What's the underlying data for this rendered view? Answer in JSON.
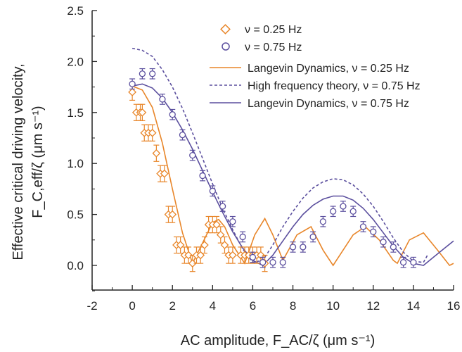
{
  "chart_data": {
    "type": "scatter",
    "xlabel": "AC amplitude, F_AC/ζ (μm s⁻¹)",
    "ylabel_line1": "Effective critical driving velocity,",
    "ylabel_line2": "F_C,eff/ζ (μm s⁻¹)",
    "xlim": [
      -2,
      16
    ],
    "ylim": [
      -0.25,
      2.5
    ],
    "x_ticks": [
      -2,
      0,
      2,
      4,
      6,
      8,
      10,
      12,
      14,
      16
    ],
    "y_ticks": [
      0.0,
      0.5,
      1.0,
      1.5,
      2.0,
      2.5
    ],
    "x_tick_labels": [
      "-2",
      "0",
      "2",
      "4",
      "6",
      "8",
      "10",
      "12",
      "14",
      "16"
    ],
    "y_tick_labels": [
      "0.0",
      "0.5",
      "1.0",
      "1.5",
      "2.0",
      "2.5"
    ],
    "legend_position": "top-right",
    "series": [
      {
        "name": "ν = 0.25 Hz",
        "kind": "scatter",
        "marker": "diamond",
        "color": "#E8862A",
        "error": 0.08,
        "points": [
          [
            0.0,
            1.7
          ],
          [
            0.2,
            1.5
          ],
          [
            0.4,
            1.5
          ],
          [
            0.5,
            1.5
          ],
          [
            0.6,
            1.3
          ],
          [
            0.8,
            1.3
          ],
          [
            1.0,
            1.3
          ],
          [
            1.2,
            1.1
          ],
          [
            1.4,
            0.9
          ],
          [
            1.6,
            0.9
          ],
          [
            1.8,
            0.5
          ],
          [
            2.0,
            0.5
          ],
          [
            2.2,
            0.2
          ],
          [
            2.4,
            0.2
          ],
          [
            2.6,
            0.1
          ],
          [
            2.8,
            0.1
          ],
          [
            3.0,
            0.02
          ],
          [
            3.2,
            0.1
          ],
          [
            3.4,
            0.1
          ],
          [
            3.6,
            0.2
          ],
          [
            3.8,
            0.4
          ],
          [
            4.0,
            0.4
          ],
          [
            4.2,
            0.4
          ],
          [
            4.4,
            0.3
          ],
          [
            4.6,
            0.2
          ],
          [
            4.8,
            0.1
          ],
          [
            5.0,
            0.1
          ],
          [
            5.4,
            0.1
          ],
          [
            5.6,
            0.1
          ],
          [
            5.8,
            0.1
          ],
          [
            6.0,
            0.1
          ],
          [
            6.2,
            0.1
          ],
          [
            6.4,
            0.1
          ],
          [
            6.6,
            0.02
          ]
        ]
      },
      {
        "name": "ν = 0.75 Hz",
        "kind": "scatter",
        "marker": "circle",
        "color": "#5B4F9E",
        "error": 0.05,
        "points": [
          [
            0.0,
            1.78
          ],
          [
            0.5,
            1.88
          ],
          [
            1.0,
            1.88
          ],
          [
            1.5,
            1.63
          ],
          [
            2.0,
            1.48
          ],
          [
            2.5,
            1.28
          ],
          [
            3.0,
            1.08
          ],
          [
            3.5,
            0.88
          ],
          [
            4.0,
            0.73
          ],
          [
            4.5,
            0.58
          ],
          [
            5.0,
            0.43
          ],
          [
            5.5,
            0.28
          ],
          [
            6.0,
            0.08
          ],
          [
            6.5,
            0.03
          ],
          [
            7.0,
            0.03
          ],
          [
            7.5,
            0.03
          ],
          [
            8.0,
            0.18
          ],
          [
            8.5,
            0.18
          ],
          [
            9.0,
            0.28
          ],
          [
            9.5,
            0.43
          ],
          [
            10.0,
            0.53
          ],
          [
            10.5,
            0.58
          ],
          [
            11.0,
            0.53
          ],
          [
            11.5,
            0.38
          ],
          [
            12.0,
            0.33
          ],
          [
            12.5,
            0.23
          ],
          [
            13.0,
            0.18
          ],
          [
            13.5,
            0.03
          ],
          [
            14.0,
            0.03
          ]
        ]
      },
      {
        "name": "Langevin Dynamics,  ν = 0.25 Hz",
        "kind": "line",
        "style": "solid",
        "color": "#E8862A",
        "points": [
          [
            0,
            1.76
          ],
          [
            0.5,
            1.72
          ],
          [
            1.0,
            1.55
          ],
          [
            1.5,
            1.2
          ],
          [
            2.0,
            0.75
          ],
          [
            2.5,
            0.32
          ],
          [
            3.0,
            0.02
          ],
          [
            3.5,
            0.22
          ],
          [
            4.0,
            0.42
          ],
          [
            4.3,
            0.45
          ],
          [
            4.6,
            0.38
          ],
          [
            5.0,
            0.2
          ],
          [
            5.6,
            0.02
          ],
          [
            6.1,
            0.3
          ],
          [
            6.6,
            0.46
          ],
          [
            7.0,
            0.3
          ],
          [
            7.5,
            0.05
          ],
          [
            8.2,
            0.3
          ],
          [
            8.9,
            0.38
          ],
          [
            9.5,
            0.15
          ],
          [
            10.0,
            0.0
          ],
          [
            10.5,
            0.15
          ],
          [
            11.0,
            0.3
          ],
          [
            11.6,
            0.38
          ],
          [
            12.3,
            0.25
          ],
          [
            13.0,
            0.05
          ],
          [
            13.2,
            0.02
          ],
          [
            13.8,
            0.25
          ],
          [
            14.5,
            0.32
          ],
          [
            15.2,
            0.15
          ],
          [
            15.8,
            0.0
          ],
          [
            16.0,
            0.02
          ]
        ]
      },
      {
        "name": "High frequency theory,  ν = 0.75 Hz",
        "kind": "line",
        "style": "dashed",
        "color": "#5B4F9E",
        "points": [
          [
            0,
            2.13
          ],
          [
            0.5,
            2.11
          ],
          [
            1.0,
            2.05
          ],
          [
            1.5,
            1.92
          ],
          [
            2.0,
            1.75
          ],
          [
            2.5,
            1.54
          ],
          [
            3.0,
            1.3
          ],
          [
            3.5,
            1.05
          ],
          [
            4.0,
            0.8
          ],
          [
            4.5,
            0.56
          ],
          [
            5.0,
            0.35
          ],
          [
            5.5,
            0.16
          ],
          [
            6.0,
            0.03
          ],
          [
            6.5,
            0.05
          ],
          [
            7.0,
            0.2
          ],
          [
            7.5,
            0.38
          ],
          [
            8.0,
            0.53
          ],
          [
            8.5,
            0.66
          ],
          [
            9.0,
            0.76
          ],
          [
            9.5,
            0.82
          ],
          [
            10.0,
            0.85
          ],
          [
            10.5,
            0.84
          ],
          [
            11.0,
            0.79
          ],
          [
            11.5,
            0.7
          ],
          [
            12.0,
            0.58
          ],
          [
            12.5,
            0.43
          ],
          [
            13.0,
            0.27
          ],
          [
            13.5,
            0.13
          ],
          [
            14.0,
            0.04
          ],
          [
            14.5,
            0.03
          ],
          [
            14.7,
            0.1
          ]
        ]
      },
      {
        "name": "Langevin Dynamics,  ν = 0.75 Hz",
        "kind": "line",
        "style": "solid",
        "color": "#5B4F9E",
        "points": [
          [
            0,
            1.76
          ],
          [
            0.5,
            1.78
          ],
          [
            1.0,
            1.74
          ],
          [
            1.5,
            1.64
          ],
          [
            2.0,
            1.5
          ],
          [
            2.5,
            1.33
          ],
          [
            3.0,
            1.14
          ],
          [
            3.5,
            0.93
          ],
          [
            4.0,
            0.72
          ],
          [
            4.5,
            0.52
          ],
          [
            5.0,
            0.33
          ],
          [
            5.5,
            0.17
          ],
          [
            6.0,
            0.05
          ],
          [
            6.5,
            0.0
          ],
          [
            7.0,
            0.1
          ],
          [
            7.5,
            0.24
          ],
          [
            8.0,
            0.38
          ],
          [
            8.5,
            0.5
          ],
          [
            9.0,
            0.59
          ],
          [
            9.5,
            0.65
          ],
          [
            10.0,
            0.68
          ],
          [
            10.5,
            0.68
          ],
          [
            11.0,
            0.64
          ],
          [
            11.5,
            0.56
          ],
          [
            12.0,
            0.45
          ],
          [
            12.5,
            0.32
          ],
          [
            13.0,
            0.19
          ],
          [
            13.5,
            0.08
          ],
          [
            14.0,
            0.02
          ],
          [
            14.5,
            0.0
          ],
          [
            15.0,
            0.08
          ],
          [
            15.5,
            0.16
          ],
          [
            16.0,
            0.24
          ]
        ]
      }
    ]
  }
}
